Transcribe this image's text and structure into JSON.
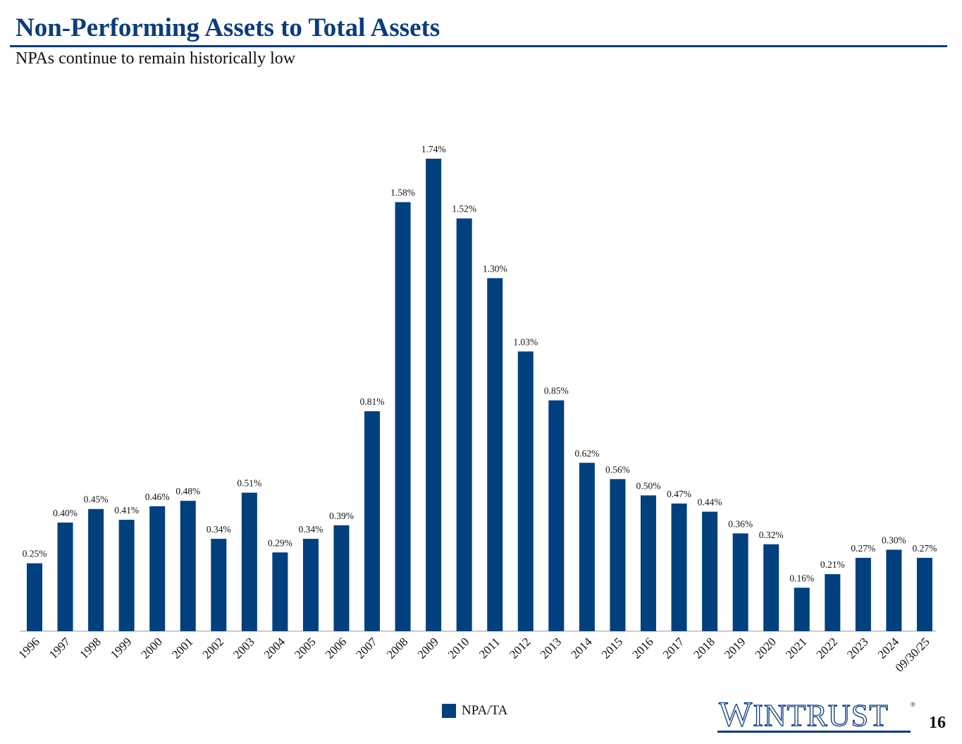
{
  "header": {
    "title": "Non-Performing Assets to Total Assets",
    "subtitle": "NPAs continue to remain historically low"
  },
  "colors": {
    "accent": "#0b3c7e",
    "bar": "#00407e",
    "text": "#111111"
  },
  "chart_data": {
    "type": "bar",
    "categories": [
      "1996",
      "1997",
      "1998",
      "1999",
      "2000",
      "2001",
      "2002",
      "2003",
      "2004",
      "2005",
      "2006",
      "2007",
      "2008",
      "2009",
      "2010",
      "2011",
      "2012",
      "2013",
      "2014",
      "2015",
      "2016",
      "2017",
      "2018",
      "2019",
      "2020",
      "2021",
      "2022",
      "2023",
      "2024",
      "09/30/25"
    ],
    "series": [
      {
        "name": "NPA/TA",
        "values": [
          0.25,
          0.4,
          0.45,
          0.41,
          0.46,
          0.48,
          0.34,
          0.51,
          0.29,
          0.34,
          0.39,
          0.81,
          1.58,
          1.74,
          1.52,
          1.3,
          1.03,
          0.85,
          0.62,
          0.56,
          0.5,
          0.47,
          0.44,
          0.36,
          0.32,
          0.16,
          0.21,
          0.27,
          0.3,
          0.27
        ],
        "labels": [
          "0.25%",
          "0.40%",
          "0.45%",
          "0.41%",
          "0.46%",
          "0.48%",
          "0.34%",
          "0.51%",
          "0.29%",
          "0.34%",
          "0.39%",
          "0.81%",
          "1.58%",
          "1.74%",
          "1.52%",
          "1.30%",
          "1.03%",
          "0.85%",
          "0.62%",
          "0.56%",
          "0.50%",
          "0.47%",
          "0.44%",
          "0.36%",
          "0.32%",
          "0.16%",
          "0.21%",
          "0.27%",
          "0.30%",
          "0.27%"
        ]
      }
    ],
    "ylim": [
      0,
      1.74
    ],
    "grid": false,
    "legend_placement": "bottom-center"
  },
  "legend": {
    "label": "NPA/TA"
  },
  "logo": {
    "text": "WINTRUST",
    "registered": "®"
  },
  "footer": {
    "page_number": "16"
  }
}
